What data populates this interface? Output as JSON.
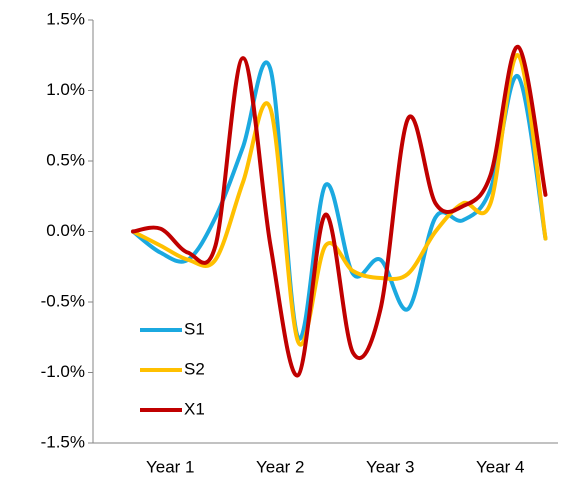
{
  "chart_data": {
    "type": "line",
    "categories": [
      null,
      "Year 1",
      null,
      null,
      null,
      "Year 2",
      null,
      null,
      null,
      "Year 3",
      null,
      null,
      null,
      "Year 4",
      null,
      null
    ],
    "series": [
      {
        "name": "S1",
        "color": "#1ba9e0",
        "values": [
          0,
          -0.15,
          -0.2,
          0.1,
          0.6,
          1.15,
          -0.75,
          0.33,
          -0.3,
          -0.2,
          -0.55,
          0.1,
          0.08,
          0.3,
          1.1,
          -0.05
        ]
      },
      {
        "name": "S2",
        "color": "#ffc000",
        "values": [
          0,
          -0.1,
          -0.2,
          -0.2,
          0.35,
          0.87,
          -0.78,
          -0.1,
          -0.28,
          -0.33,
          -0.3,
          0,
          0.2,
          0.2,
          1.25,
          -0.05
        ]
      },
      {
        "name": "X1",
        "color": "#c00000",
        "values": [
          0,
          0.02,
          -0.15,
          -0.1,
          1.23,
          -0.1,
          -1.02,
          0.12,
          -0.86,
          -0.55,
          0.8,
          0.2,
          0.18,
          0.4,
          1.31,
          0.26
        ]
      }
    ],
    "ylim": [
      -1.5,
      1.5
    ],
    "yticks": [
      {
        "value": -1.5,
        "label": "-1.5%"
      },
      {
        "value": -1,
        "label": "-1.0%"
      },
      {
        "value": -0.5,
        "label": "-0.5%"
      },
      {
        "value": 0,
        "label": "0.0%"
      },
      {
        "value": 0.5,
        "label": "0.5%"
      },
      {
        "value": 1,
        "label": "1.0%"
      },
      {
        "value": 1.5,
        "label": "1.5%"
      }
    ],
    "grid": false,
    "smooth": true,
    "legend": "bottom-left"
  }
}
